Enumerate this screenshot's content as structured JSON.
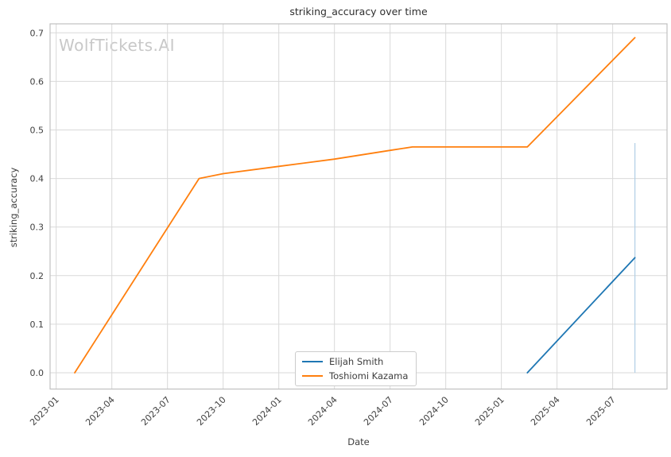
{
  "header": {
    "title": "striking_accuracy over time"
  },
  "watermark": {
    "text": "WolfTickets.AI",
    "color": "#c8c8c8"
  },
  "axes": {
    "xlabel": "Date",
    "ylabel": "striking_accuracy"
  },
  "legend": {
    "entries": [
      {
        "label": "Elijah Smith",
        "color": "#1f77b4"
      },
      {
        "label": "Toshiomi Kazama",
        "color": "#ff7f0e"
      }
    ]
  },
  "style": {
    "grid_color": "#d9d9d9",
    "spine_color": "#c0c0c0",
    "tick_text_color": "#404040",
    "series_blue": "#1f77b4",
    "series_orange": "#ff7f0e",
    "marker_line_color": "#b1cfe5"
  },
  "chart_data": {
    "type": "line",
    "title": "striking_accuracy over time",
    "xlabel": "Date",
    "ylabel": "striking_accuracy",
    "grid": true,
    "legend_position": "lower center",
    "x_tick_labels": [
      "2023-01",
      "2023-04",
      "2023-07",
      "2023-10",
      "2024-01",
      "2024-04",
      "2024-07",
      "2024-10",
      "2025-01",
      "2025-04",
      "2025-07"
    ],
    "x_tick_positions_months": [
      0,
      3,
      6,
      9,
      12,
      15,
      18,
      21,
      24,
      27,
      30
    ],
    "y_ticks": [
      0.0,
      0.1,
      0.2,
      0.3,
      0.4,
      0.5,
      0.6,
      0.7
    ],
    "xlim_months": [
      -0.33,
      32.93
    ],
    "ylim": [
      -0.0336,
      0.7185
    ],
    "series": [
      {
        "name": "Elijah Smith",
        "color": "#1f77b4",
        "points": [
          {
            "date": "2025-02",
            "t": 25.4,
            "value": 0.0
          },
          {
            "date": "2025-08",
            "t": 31.2,
            "value": 0.237
          }
        ]
      },
      {
        "name": "Toshiomi Kazama",
        "color": "#ff7f0e",
        "points": [
          {
            "date": "2023-02",
            "t": 1.0,
            "value": 0.0
          },
          {
            "date": "2023-09",
            "t": 7.7,
            "value": 0.4
          },
          {
            "date": "2023-10",
            "t": 9.0,
            "value": 0.41
          },
          {
            "date": "2024-01",
            "t": 12.0,
            "value": 0.425
          },
          {
            "date": "2024-04",
            "t": 15.0,
            "value": 0.44
          },
          {
            "date": "2024-07",
            "t": 18.0,
            "value": 0.458
          },
          {
            "date": "2024-08",
            "t": 19.2,
            "value": 0.465
          },
          {
            "date": "2025-02",
            "t": 25.4,
            "value": 0.465
          },
          {
            "date": "2025-08",
            "t": 31.2,
            "value": 0.69
          }
        ]
      }
    ],
    "annotations": [
      {
        "type": "vertical-line",
        "date": "2025-08",
        "t": 31.2,
        "value_from": 0.0,
        "value_to": 0.473,
        "color": "#b1cfe5"
      }
    ]
  }
}
